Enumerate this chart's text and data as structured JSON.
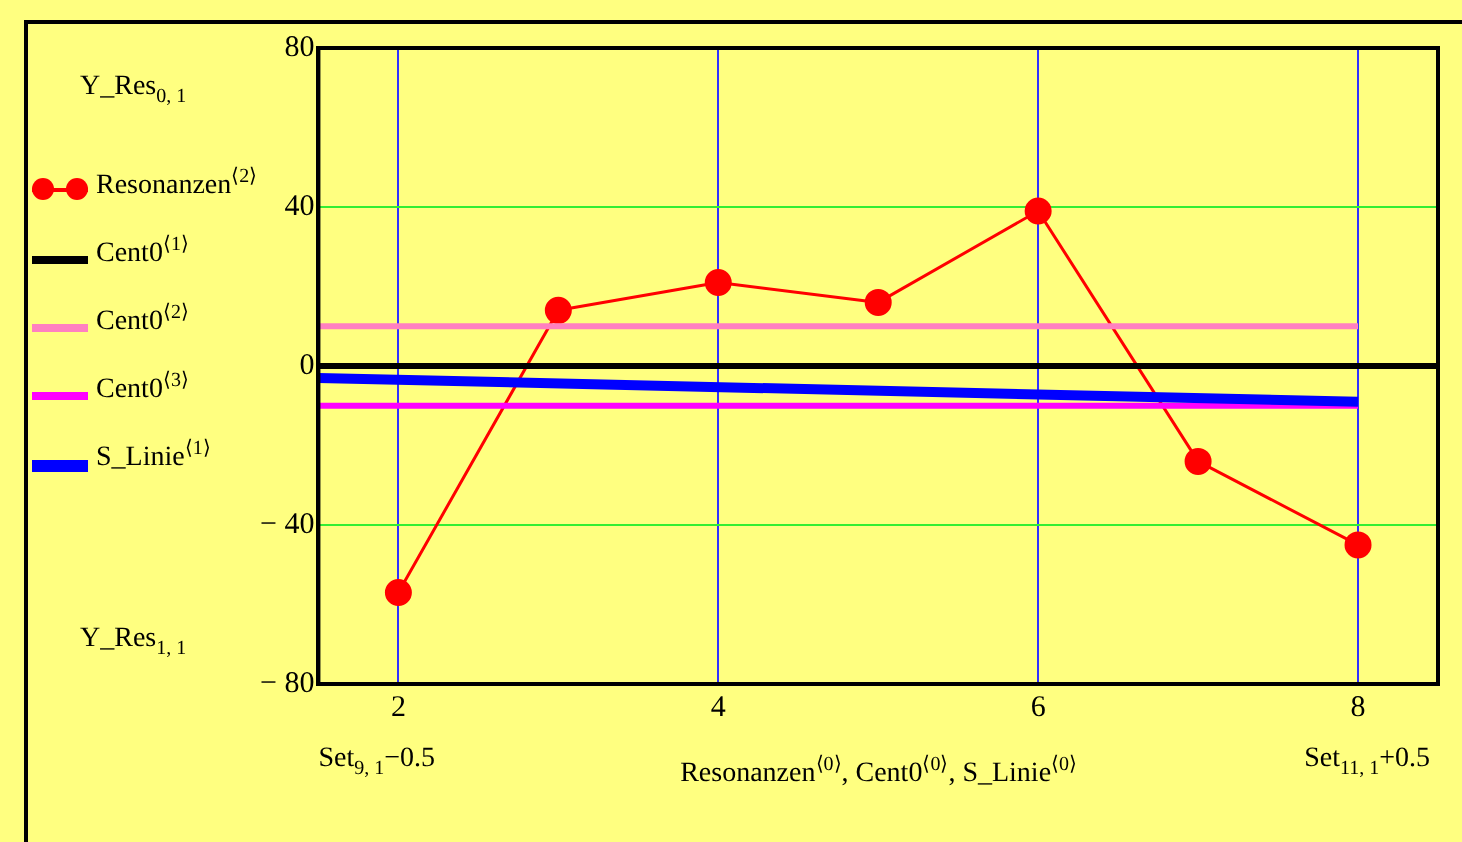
{
  "chart_data": {
    "type": "line",
    "xlabel": "Resonanzen$^{⟨0⟩}$, Cent0$^{⟨0⟩}$, S_Linie$^{⟨0⟩}$",
    "xlim": [
      1.5,
      8.5
    ],
    "xticks": [
      2,
      4,
      6,
      8
    ],
    "ylim": [
      -80,
      80
    ],
    "yticks": [
      {
        "value": -80,
        "label": "− 80"
      },
      {
        "value": -40,
        "label": "− 40"
      },
      0,
      40,
      80
    ],
    "grid": true,
    "legend": "left",
    "annotations": [
      "Y_Res$_{0, 1}$",
      "Y_Res$_{1, 1}$",
      "Set$_{9, 1}$−0.5",
      "Set$_{11, 1}$+0.5"
    ],
    "series": [
      {
        "name": "Resonanzen$^{⟨2⟩}$",
        "color": "#ff0000",
        "marker": "circle",
        "x": [
          2,
          3,
          4,
          5,
          6,
          7,
          8
        ],
        "values": [
          -57,
          14,
          21,
          16,
          39,
          -24,
          -45
        ]
      },
      {
        "name": "Cent0$^{⟨1⟩}$",
        "color": "#000000",
        "marker": "none",
        "x": [
          1.5,
          8.5
        ],
        "values": [
          0,
          0
        ]
      },
      {
        "name": "Cent0$^{⟨2⟩}$",
        "color": "#ff80c0",
        "marker": "none",
        "x": [
          1.5,
          8
        ],
        "values": [
          10,
          10
        ]
      },
      {
        "name": "Cent0$^{⟨3⟩}$",
        "color": "#ff00ff",
        "marker": "none",
        "x": [
          1.5,
          8
        ],
        "values": [
          -10,
          -10
        ]
      },
      {
        "name": "S_Linie$^{⟨1⟩}$",
        "color": "#0000ff",
        "marker": "none",
        "x": [
          1.5,
          8
        ],
        "values": [
          -3,
          -9
        ]
      }
    ]
  }
}
